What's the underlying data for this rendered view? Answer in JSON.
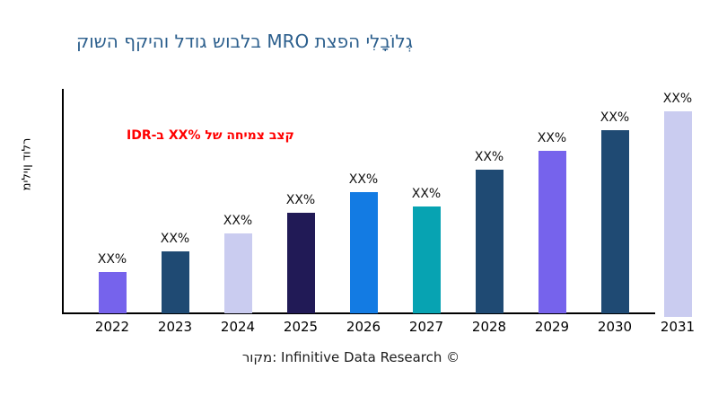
{
  "title": {
    "text": "גְלוֹבָלִי הפצת MRO בלבוש גודל והיקף השוק",
    "color": "#2c5f8d"
  },
  "annotation": {
    "text": "קצב צמיחה של XX%‎ ב-IDR",
    "color": "#ff0000"
  },
  "y_axis_label": "מיליון דולר",
  "source": "מקור: Infinitive Data Research ©",
  "chart_data": {
    "type": "bar",
    "title": "גְלוֹבָלִי הפצת MRO בלבוש גודל והיקף השוק",
    "xlabel": "",
    "ylabel": "מיליון דולר",
    "categories": [
      "2022",
      "2023",
      "2024",
      "2025",
      "2026",
      "2027",
      "2028",
      "2029",
      "2030",
      "2031"
    ],
    "values": [
      2.0,
      3.0,
      3.9,
      4.9,
      5.9,
      5.2,
      7.0,
      7.9,
      8.9,
      10.0
    ],
    "values_note": "relative units estimated from bar heights; no numeric y-axis ticks are shown",
    "ylim": [
      0,
      10
    ],
    "bar_labels": [
      "XX%",
      "XX%",
      "XX%",
      "XX%",
      "XX%",
      "XX%",
      "XX%",
      "XX%",
      "XX%",
      "XX%"
    ],
    "bar_colors": [
      "#7663ec",
      "#1f4a73",
      "#caccf0",
      "#211a56",
      "#137be3",
      "#07a3b2",
      "#1f4a73",
      "#7663ec",
      "#1f4a73",
      "#caccf0"
    ],
    "baseline_y_offsets": [
      0,
      0,
      0,
      0,
      0,
      0,
      0,
      0,
      0,
      4
    ],
    "grid": false,
    "legend": false,
    "annotation_text": "קצב צמיחה של XX% ב-IDR",
    "annotation_color": "#ff0000"
  }
}
